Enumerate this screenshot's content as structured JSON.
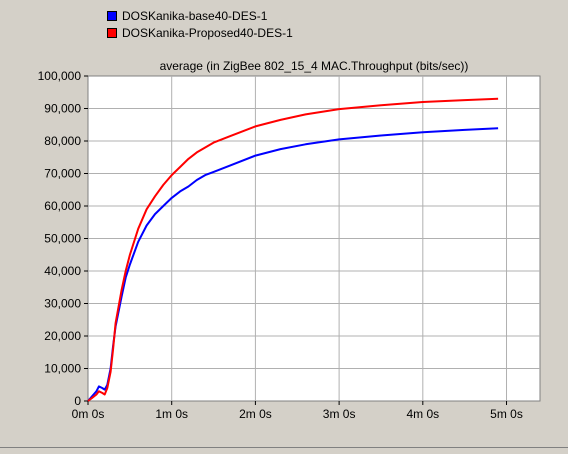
{
  "chart_data": {
    "type": "line",
    "title": "average (in ZigBee 802_15_4 MAC.Throughput (bits/sec))",
    "xlabel": "",
    "ylabel": "",
    "ylim": [
      0,
      100000
    ],
    "xlim_minutes": [
      0,
      5.4
    ],
    "y_ticks": [
      0,
      10000,
      20000,
      30000,
      40000,
      50000,
      60000,
      70000,
      80000,
      90000,
      100000
    ],
    "y_tick_labels": [
      "0",
      "10,000",
      "20,000",
      "30,000",
      "40,000",
      "50,000",
      "60,000",
      "70,000",
      "80,000",
      "90,000",
      "100,000"
    ],
    "x_ticks_minutes": [
      0,
      1,
      2,
      3,
      4,
      5
    ],
    "x_tick_labels": [
      "0m 0s",
      "1m 0s",
      "2m 0s",
      "3m 0s",
      "4m 0s",
      "5m 0s"
    ],
    "grid": true,
    "legend_position": "top-left",
    "series": [
      {
        "name": "DOSKanika-base40-DES-1",
        "color": "#0000ff",
        "x_minutes": [
          0.0,
          0.05,
          0.1,
          0.13,
          0.17,
          0.2,
          0.23,
          0.27,
          0.3,
          0.33,
          0.4,
          0.45,
          0.5,
          0.6,
          0.7,
          0.8,
          0.9,
          1.0,
          1.1,
          1.2,
          1.3,
          1.4,
          1.5,
          1.7,
          2.0,
          2.3,
          2.6,
          3.0,
          3.5,
          4.0,
          4.5,
          4.9
        ],
        "values": [
          0,
          1500,
          3000,
          4500,
          4000,
          3500,
          5000,
          10000,
          17000,
          23000,
          32000,
          38000,
          42000,
          49000,
          54000,
          57500,
          60000,
          62500,
          64500,
          66000,
          68000,
          69500,
          70500,
          72500,
          75500,
          77500,
          79000,
          80500,
          81700,
          82700,
          83400,
          83900
        ]
      },
      {
        "name": "DOSKanika-Proposed40-DES-1",
        "color": "#ff0000",
        "x_minutes": [
          0.0,
          0.05,
          0.1,
          0.13,
          0.17,
          0.2,
          0.23,
          0.27,
          0.3,
          0.33,
          0.4,
          0.45,
          0.5,
          0.6,
          0.7,
          0.8,
          0.9,
          1.0,
          1.1,
          1.2,
          1.3,
          1.4,
          1.5,
          1.7,
          2.0,
          2.3,
          2.6,
          3.0,
          3.5,
          4.0,
          4.5,
          4.9
        ],
        "values": [
          0,
          1000,
          2000,
          3000,
          2500,
          2000,
          4000,
          9000,
          16000,
          24000,
          34000,
          40000,
          45000,
          53000,
          59000,
          63000,
          66500,
          69500,
          72000,
          74500,
          76500,
          78000,
          79500,
          81500,
          84500,
          86500,
          88200,
          89800,
          91000,
          92000,
          92600,
          93000
        ]
      }
    ]
  }
}
